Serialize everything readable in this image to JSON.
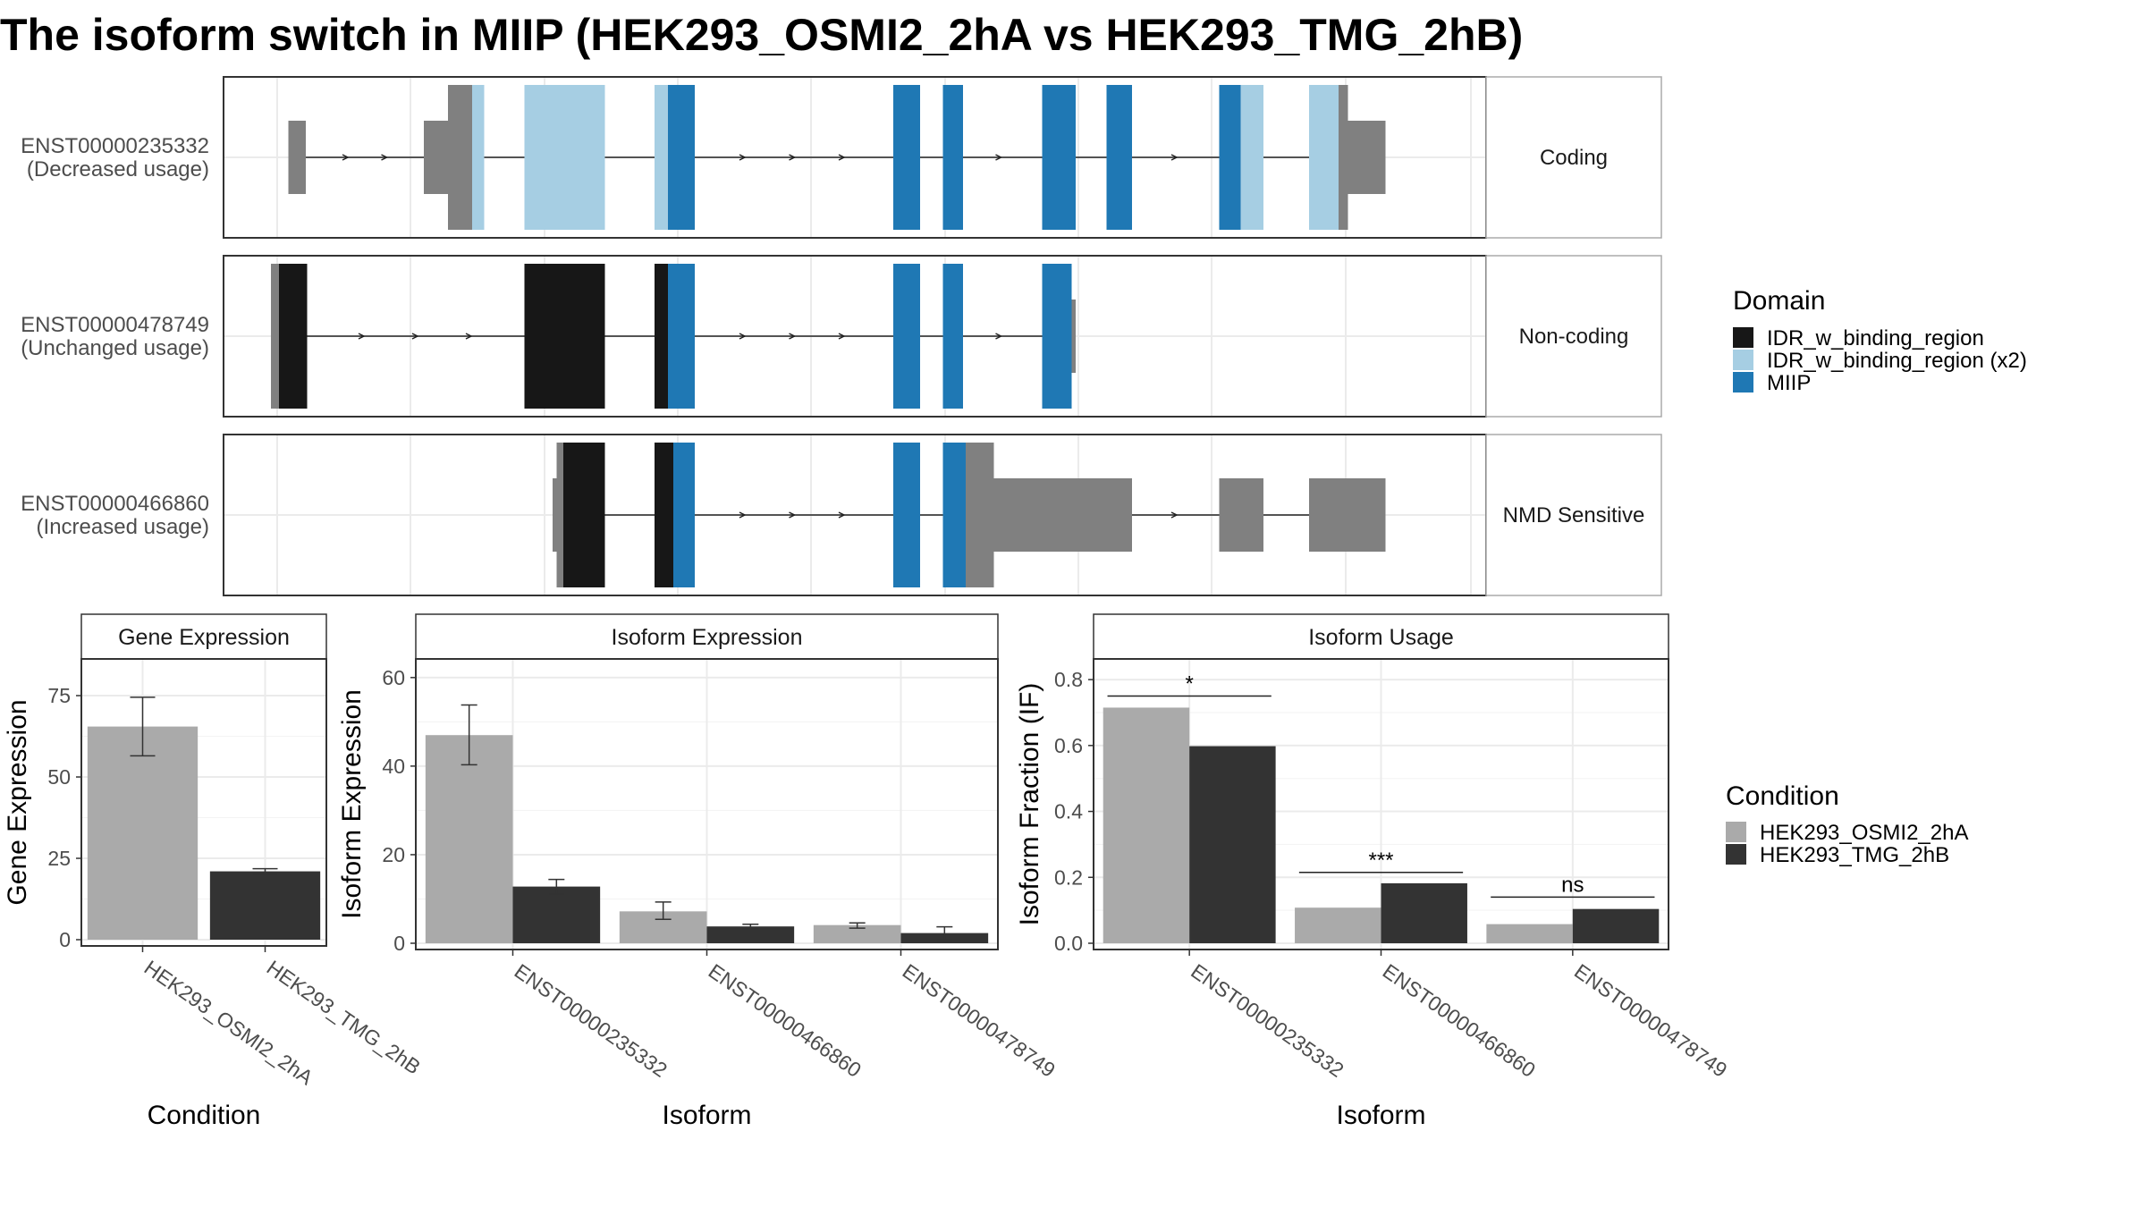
{
  "title": "The isoform switch in MIIP (HEK293_OSMI2_2hA vs HEK293_TMG_2hB)",
  "colors": {
    "idr": "#171717",
    "idr_x2": "#a6cee3",
    "miip": "#1f78b4",
    "utr": "#808080",
    "cond_a": "#aaaaaa",
    "cond_b": "#333333",
    "strip_border": "#333333",
    "grid": "#ebebeb"
  },
  "gene_model": {
    "tracks": [
      {
        "id": "ENST00000235332",
        "usage": "(Decreased usage)",
        "strip": "Coding",
        "exons": [
          {
            "s": 215,
            "e": 228,
            "h": "utr"
          },
          {
            "s": 316,
            "e": 334,
            "h": "cds",
            "c": "utr"
          },
          {
            "s": 334,
            "e": 352,
            "h": "full",
            "c": "utr"
          },
          {
            "s": 352,
            "e": 361,
            "h": "full",
            "c": "idr_x2"
          },
          {
            "s": 391,
            "e": 451,
            "h": "full",
            "c": "idr_x2"
          },
          {
            "s": 488,
            "e": 498,
            "h": "full",
            "c": "idr_x2"
          },
          {
            "s": 498,
            "e": 518,
            "h": "full",
            "c": "miip"
          },
          {
            "s": 666,
            "e": 686,
            "h": "full",
            "c": "miip"
          },
          {
            "s": 703,
            "e": 718,
            "h": "full",
            "c": "miip"
          },
          {
            "s": 777,
            "e": 802,
            "h": "full",
            "c": "miip"
          },
          {
            "s": 825,
            "e": 844,
            "h": "full",
            "c": "miip"
          },
          {
            "s": 909,
            "e": 925,
            "h": "full",
            "c": "miip"
          },
          {
            "s": 925,
            "e": 942,
            "h": "full",
            "c": "idr_x2"
          },
          {
            "s": 976,
            "e": 998,
            "h": "full",
            "c": "idr_x2"
          },
          {
            "s": 998,
            "e": 1005,
            "h": "full",
            "c": "utr"
          },
          {
            "s": 1005,
            "e": 1033,
            "h": "cds",
            "c": "utr"
          }
        ],
        "line": [
          215,
          1033
        ],
        "arrows": [
          258,
          287,
          554,
          591,
          628,
          745,
          876
        ]
      },
      {
        "id": "ENST00000478749",
        "usage": "(Unchanged usage)",
        "strip": "Non-coding",
        "exons": [
          {
            "s": 202,
            "e": 208,
            "h": "full",
            "c": "utr"
          },
          {
            "s": 208,
            "e": 229,
            "h": "full",
            "c": "idr"
          },
          {
            "s": 391,
            "e": 451,
            "h": "full",
            "c": "idr"
          },
          {
            "s": 488,
            "e": 498,
            "h": "full",
            "c": "idr"
          },
          {
            "s": 498,
            "e": 518,
            "h": "full",
            "c": "miip"
          },
          {
            "s": 666,
            "e": 686,
            "h": "full",
            "c": "miip"
          },
          {
            "s": 703,
            "e": 718,
            "h": "full",
            "c": "miip"
          },
          {
            "s": 777,
            "e": 799,
            "h": "full",
            "c": "miip"
          },
          {
            "s": 799,
            "e": 802,
            "h": "cds",
            "c": "utr"
          }
        ],
        "line": [
          202,
          802
        ],
        "arrows": [
          270,
          310,
          350,
          554,
          591,
          628,
          745
        ]
      },
      {
        "id": "ENST00000466860",
        "usage": "(Increased usage)",
        "strip": "NMD Sensitive",
        "exons": [
          {
            "s": 412,
            "e": 415,
            "h": "cds",
            "c": "utr"
          },
          {
            "s": 415,
            "e": 420,
            "h": "full",
            "c": "utr"
          },
          {
            "s": 420,
            "e": 451,
            "h": "full",
            "c": "idr"
          },
          {
            "s": 488,
            "e": 502,
            "h": "full",
            "c": "idr"
          },
          {
            "s": 502,
            "e": 518,
            "h": "full",
            "c": "miip"
          },
          {
            "s": 666,
            "e": 686,
            "h": "full",
            "c": "miip"
          },
          {
            "s": 703,
            "e": 720,
            "h": "full",
            "c": "miip"
          },
          {
            "s": 720,
            "e": 741,
            "h": "full",
            "c": "utr"
          },
          {
            "s": 741,
            "e": 844,
            "h": "cds",
            "c": "utr"
          },
          {
            "s": 909,
            "e": 942,
            "h": "cds",
            "c": "utr"
          },
          {
            "s": 976,
            "e": 1033,
            "h": "cds",
            "c": "utr"
          }
        ],
        "line": [
          412,
          1033
        ],
        "arrows": [
          554,
          591,
          628,
          876
        ]
      }
    ]
  },
  "domain_legend": {
    "title": "Domain",
    "items": [
      {
        "label": "IDR_w_binding_region",
        "color_key": "idr"
      },
      {
        "label": "IDR_w_binding_region (x2)",
        "color_key": "idr_x2"
      },
      {
        "label": "MIIP",
        "color_key": "miip"
      }
    ]
  },
  "condition_legend": {
    "title": "Condition",
    "items": [
      {
        "label": "HEK293_OSMI2_2hA",
        "color_key": "cond_a"
      },
      {
        "label": "HEK293_TMG_2hB",
        "color_key": "cond_b"
      }
    ]
  },
  "chart_data": [
    {
      "type": "bar",
      "panel_title": "Gene Expression",
      "xlabel": "Condition",
      "ylabel": "Gene Expression",
      "ylim": [
        0,
        86
      ],
      "yticks": [
        0,
        25,
        50,
        75
      ],
      "categories": [
        "HEK293_OSMI2_2hA",
        "HEK293_TMG_2hB"
      ],
      "values": [
        65.5,
        21
      ],
      "errors": [
        [
          56.5,
          74.5
        ],
        [
          20.2,
          21.8
        ]
      ],
      "bar_color_keys": [
        "cond_a",
        "cond_b"
      ]
    },
    {
      "type": "bar",
      "panel_title": "Isoform Expression",
      "xlabel": "Isoform",
      "ylabel": "Isoform Expression",
      "ylim": [
        0,
        64
      ],
      "yticks": [
        0,
        20,
        40,
        60
      ],
      "categories": [
        "ENST00000235332",
        "ENST00000466860",
        "ENST00000478749"
      ],
      "series": [
        {
          "name": "HEK293_OSMI2_2hA",
          "color_key": "cond_a",
          "values": [
            47,
            7.2,
            4.1
          ],
          "errors": [
            [
              40.3,
              53.8
            ],
            [
              5.4,
              9.3
            ],
            [
              3.4,
              4.6
            ]
          ]
        },
        {
          "name": "HEK293_TMG_2hB",
          "color_key": "cond_b",
          "values": [
            12.8,
            3.8,
            2.3
          ],
          "errors": [
            [
              11.1,
              14.4
            ],
            [
              3.2,
              4.3
            ],
            [
              0.7,
              3.7
            ]
          ]
        }
      ]
    },
    {
      "type": "bar",
      "panel_title": "Isoform Usage",
      "xlabel": "Isoform",
      "ylabel": "Isoform Fraction (IF)",
      "ylim": [
        0,
        0.86
      ],
      "yticks": [
        0.0,
        0.2,
        0.4,
        0.6,
        0.8
      ],
      "ytick_labels": [
        "0.0",
        "0.2",
        "0.4",
        "0.6",
        "0.8"
      ],
      "categories": [
        "ENST00000235332",
        "ENST00000466860",
        "ENST00000478749"
      ],
      "series": [
        {
          "name": "HEK293_OSMI2_2hA",
          "color_key": "cond_a",
          "values": [
            0.715,
            0.108,
            0.058
          ]
        },
        {
          "name": "HEK293_TMG_2hB",
          "color_key": "cond_b",
          "values": [
            0.598,
            0.182,
            0.104
          ]
        }
      ],
      "significance": [
        "*",
        "***",
        "ns"
      ],
      "significance_y": [
        0.75,
        0.215,
        0.14
      ]
    }
  ]
}
